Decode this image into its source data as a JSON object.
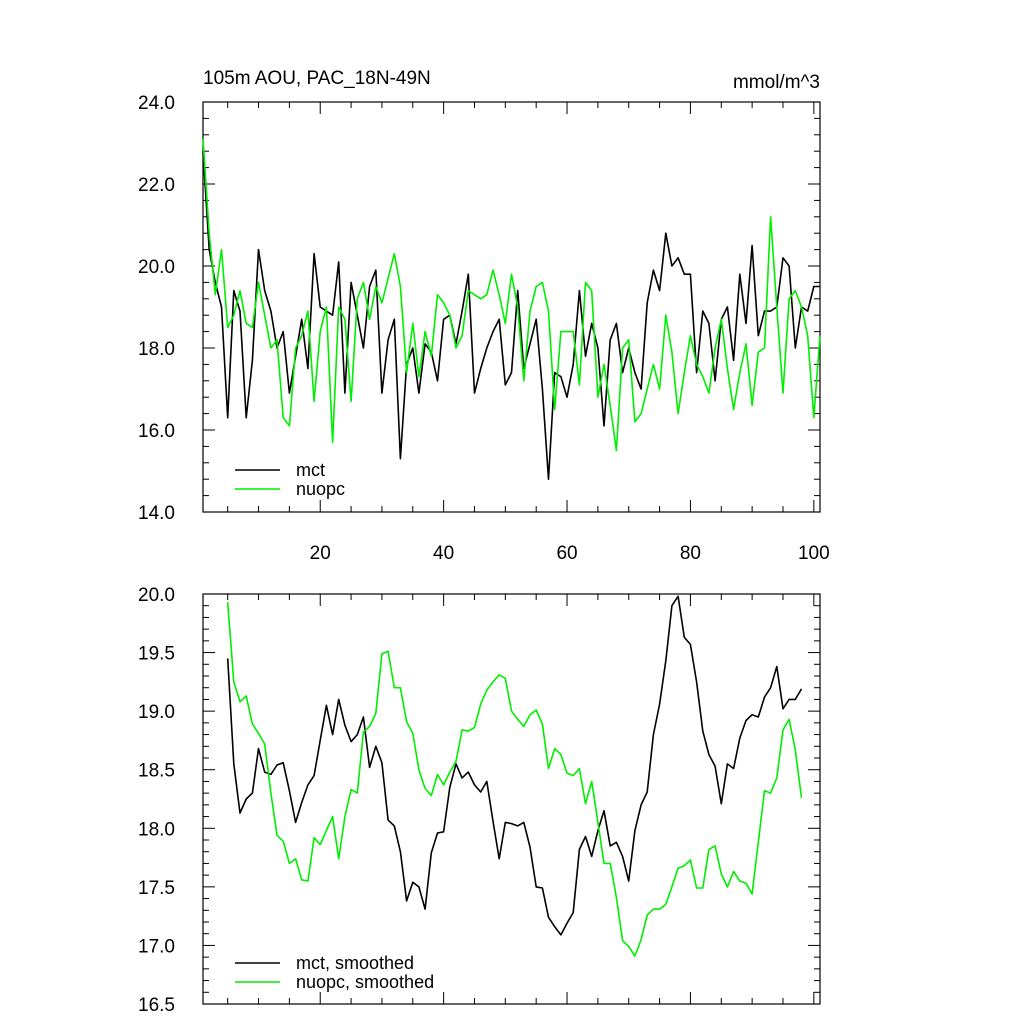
{
  "chart_data": [
    {
      "type": "line",
      "title_left": "105m AOU, PAC_18N-49N",
      "title_right": "mmol/m^3",
      "xlim": [
        1,
        101
      ],
      "ylim": [
        14.0,
        24.0
      ],
      "x_ticks": [
        20,
        40,
        60,
        80,
        100
      ],
      "x_tick_labels": [
        "20",
        "40",
        "60",
        "80",
        "100"
      ],
      "y_ticks": [
        14.0,
        16.0,
        18.0,
        20.0,
        22.0,
        24.0
      ],
      "y_tick_labels": [
        "14.0",
        "16.0",
        "18.0",
        "20.0",
        "22.0",
        "24.0"
      ],
      "legend": "bottom-left",
      "x": [
        1,
        2,
        3,
        4,
        5,
        6,
        7,
        8,
        9,
        10,
        11,
        12,
        13,
        14,
        15,
        16,
        17,
        18,
        19,
        20,
        21,
        22,
        23,
        24,
        25,
        26,
        27,
        28,
        29,
        30,
        31,
        32,
        33,
        34,
        35,
        36,
        37,
        38,
        39,
        40,
        41,
        42,
        43,
        44,
        45,
        46,
        47,
        48,
        49,
        50,
        51,
        52,
        53,
        54,
        55,
        56,
        57,
        58,
        59,
        60,
        61,
        62,
        63,
        64,
        65,
        66,
        67,
        68,
        69,
        70,
        71,
        72,
        73,
        74,
        75,
        76,
        77,
        78,
        79,
        80,
        81,
        82,
        83,
        84,
        85,
        86,
        87,
        88,
        89,
        90,
        91,
        92,
        93,
        94,
        95,
        96,
        97,
        98,
        99,
        100,
        101
      ],
      "series": [
        {
          "name": "mct",
          "color": "#000000",
          "values": [
            22.8,
            20.4,
            19.6,
            19.0,
            16.3,
            19.4,
            18.9,
            16.3,
            17.7,
            20.4,
            19.4,
            18.9,
            18.0,
            18.4,
            16.9,
            17.8,
            18.7,
            17.5,
            20.3,
            19.0,
            18.9,
            18.8,
            20.1,
            16.9,
            19.6,
            18.8,
            18.0,
            19.5,
            19.9,
            16.9,
            18.2,
            18.7,
            15.3,
            17.6,
            18.0,
            16.9,
            18.1,
            17.9,
            17.2,
            18.7,
            18.8,
            18.1,
            18.9,
            19.8,
            16.9,
            17.5,
            18.0,
            18.4,
            18.7,
            17.1,
            17.4,
            19.4,
            17.5,
            18.1,
            18.7,
            17.0,
            14.8,
            17.4,
            17.3,
            16.8,
            17.6,
            19.4,
            17.8,
            18.6,
            18.0,
            16.1,
            18.2,
            18.6,
            17.4,
            18.0,
            17.4,
            17.0,
            19.1,
            19.9,
            19.4,
            20.8,
            20.0,
            20.2,
            19.8,
            19.8,
            17.4,
            18.9,
            18.6,
            17.2,
            18.7,
            19.0,
            17.7,
            19.8,
            18.6,
            20.5,
            18.3,
            18.9,
            18.9,
            19.0,
            20.2,
            20.0,
            18.0,
            19.0,
            18.9,
            19.5,
            19.5
          ]
        },
        {
          "name": "nuopc",
          "color": "#00ee00",
          "values": [
            23.1,
            20.8,
            19.3,
            20.4,
            18.5,
            18.8,
            19.4,
            18.6,
            18.5,
            19.6,
            18.8,
            18.0,
            18.2,
            16.3,
            16.1,
            18.0,
            18.3,
            18.9,
            16.7,
            18.4,
            19.0,
            15.7,
            19.0,
            18.7,
            16.7,
            19.2,
            19.6,
            18.7,
            19.5,
            19.1,
            19.7,
            20.3,
            19.5,
            17.4,
            18.6,
            17.3,
            18.4,
            17.8,
            19.3,
            19.1,
            18.8,
            18.0,
            18.3,
            19.4,
            19.3,
            19.2,
            19.3,
            19.9,
            19.3,
            18.6,
            19.8,
            19.0,
            17.2,
            18.9,
            19.5,
            19.6,
            18.9,
            16.5,
            18.4,
            18.4,
            18.4,
            17.1,
            19.6,
            19.4,
            16.8,
            17.6,
            16.6,
            15.5,
            18.0,
            18.2,
            16.2,
            16.4,
            17.0,
            17.6,
            17.0,
            18.8,
            17.9,
            16.4,
            17.4,
            18.3,
            17.6,
            17.3,
            16.9,
            18.0,
            18.7,
            17.5,
            16.5,
            17.4,
            18.1,
            16.6,
            17.9,
            18.0,
            21.2,
            19.0,
            16.9,
            19.2,
            19.4,
            19.0,
            18.3,
            16.3,
            18.3
          ]
        }
      ]
    },
    {
      "type": "line",
      "xlim": [
        1,
        101
      ],
      "ylim": [
        16.5,
        20.0
      ],
      "x_ticks": [
        20,
        40,
        60,
        80,
        100
      ],
      "y_ticks": [
        16.5,
        17.0,
        17.5,
        18.0,
        18.5,
        19.0,
        19.5,
        20.0
      ],
      "y_tick_labels": [
        "16.5",
        "17.0",
        "17.5",
        "18.0",
        "18.5",
        "19.0",
        "19.5",
        "20.0"
      ],
      "legend": "bottom-left",
      "x": [
        5,
        6,
        7,
        8,
        9,
        10,
        11,
        12,
        13,
        14,
        15,
        16,
        17,
        18,
        19,
        20,
        21,
        22,
        23,
        24,
        25,
        26,
        27,
        28,
        29,
        30,
        31,
        32,
        33,
        34,
        35,
        36,
        37,
        38,
        39,
        40,
        41,
        42,
        43,
        44,
        45,
        46,
        47,
        48,
        49,
        50,
        51,
        52,
        53,
        54,
        55,
        56,
        57,
        58,
        59,
        60,
        61,
        62,
        63,
        64,
        65,
        66,
        67,
        68,
        69,
        70,
        71,
        72,
        73,
        74,
        75,
        76,
        77,
        78,
        79,
        80,
        81,
        82,
        83,
        84,
        85,
        86,
        87,
        88,
        89,
        90,
        91,
        92,
        93,
        94,
        95,
        96,
        97,
        98
      ],
      "series": [
        {
          "name": "mct, smoothed",
          "color": "#000000",
          "values": [
            19.45,
            18.55,
            18.13,
            18.25,
            18.3,
            18.68,
            18.48,
            18.46,
            18.54,
            18.56,
            18.32,
            18.05,
            18.22,
            18.37,
            18.45,
            18.75,
            19.05,
            18.8,
            19.1,
            18.88,
            18.74,
            18.8,
            18.95,
            18.52,
            18.7,
            18.56,
            18.07,
            18.02,
            17.8,
            17.38,
            17.54,
            17.5,
            17.31,
            17.79,
            17.96,
            17.97,
            18.35,
            18.55,
            18.43,
            18.48,
            18.37,
            18.31,
            18.4,
            18.06,
            17.74,
            18.05,
            18.04,
            18.02,
            18.05,
            17.84,
            17.5,
            17.49,
            17.24,
            17.16,
            17.09,
            17.19,
            17.28,
            17.82,
            17.93,
            17.76,
            17.98,
            18.15,
            17.85,
            17.88,
            17.76,
            17.55,
            17.98,
            18.2,
            18.31,
            18.8,
            19.06,
            19.43,
            19.9,
            19.98,
            19.63,
            19.57,
            19.25,
            18.83,
            18.63,
            18.53,
            18.21,
            18.55,
            18.51,
            18.77,
            18.92,
            18.97,
            18.95,
            19.12,
            19.2,
            19.38,
            19.02,
            19.1,
            19.1,
            19.19
          ]
        },
        {
          "name": "nuopc, smoothed",
          "color": "#00ee00",
          "values": [
            19.93,
            19.25,
            19.08,
            19.13,
            18.89,
            18.81,
            18.72,
            18.3,
            17.94,
            17.89,
            17.7,
            17.74,
            17.56,
            17.55,
            17.92,
            17.86,
            17.98,
            18.1,
            17.74,
            18.1,
            18.33,
            18.3,
            18.82,
            18.87,
            18.98,
            19.49,
            19.51,
            19.2,
            19.2,
            18.91,
            18.81,
            18.5,
            18.34,
            18.28,
            18.46,
            18.37,
            18.48,
            18.57,
            18.84,
            18.83,
            18.86,
            19.06,
            19.18,
            19.25,
            19.31,
            19.28,
            19.0,
            18.93,
            18.87,
            18.97,
            19.01,
            18.89,
            18.51,
            18.68,
            18.63,
            18.47,
            18.45,
            18.51,
            18.21,
            18.4,
            18.05,
            17.7,
            17.7,
            17.41,
            17.04,
            16.99,
            16.91,
            17.05,
            17.26,
            17.31,
            17.31,
            17.35,
            17.5,
            17.66,
            17.68,
            17.73,
            17.49,
            17.49,
            17.82,
            17.85,
            17.61,
            17.5,
            17.63,
            17.55,
            17.53,
            17.44,
            17.88,
            18.32,
            18.3,
            18.43,
            18.84,
            18.93,
            18.67,
            18.26
          ]
        }
      ]
    }
  ]
}
